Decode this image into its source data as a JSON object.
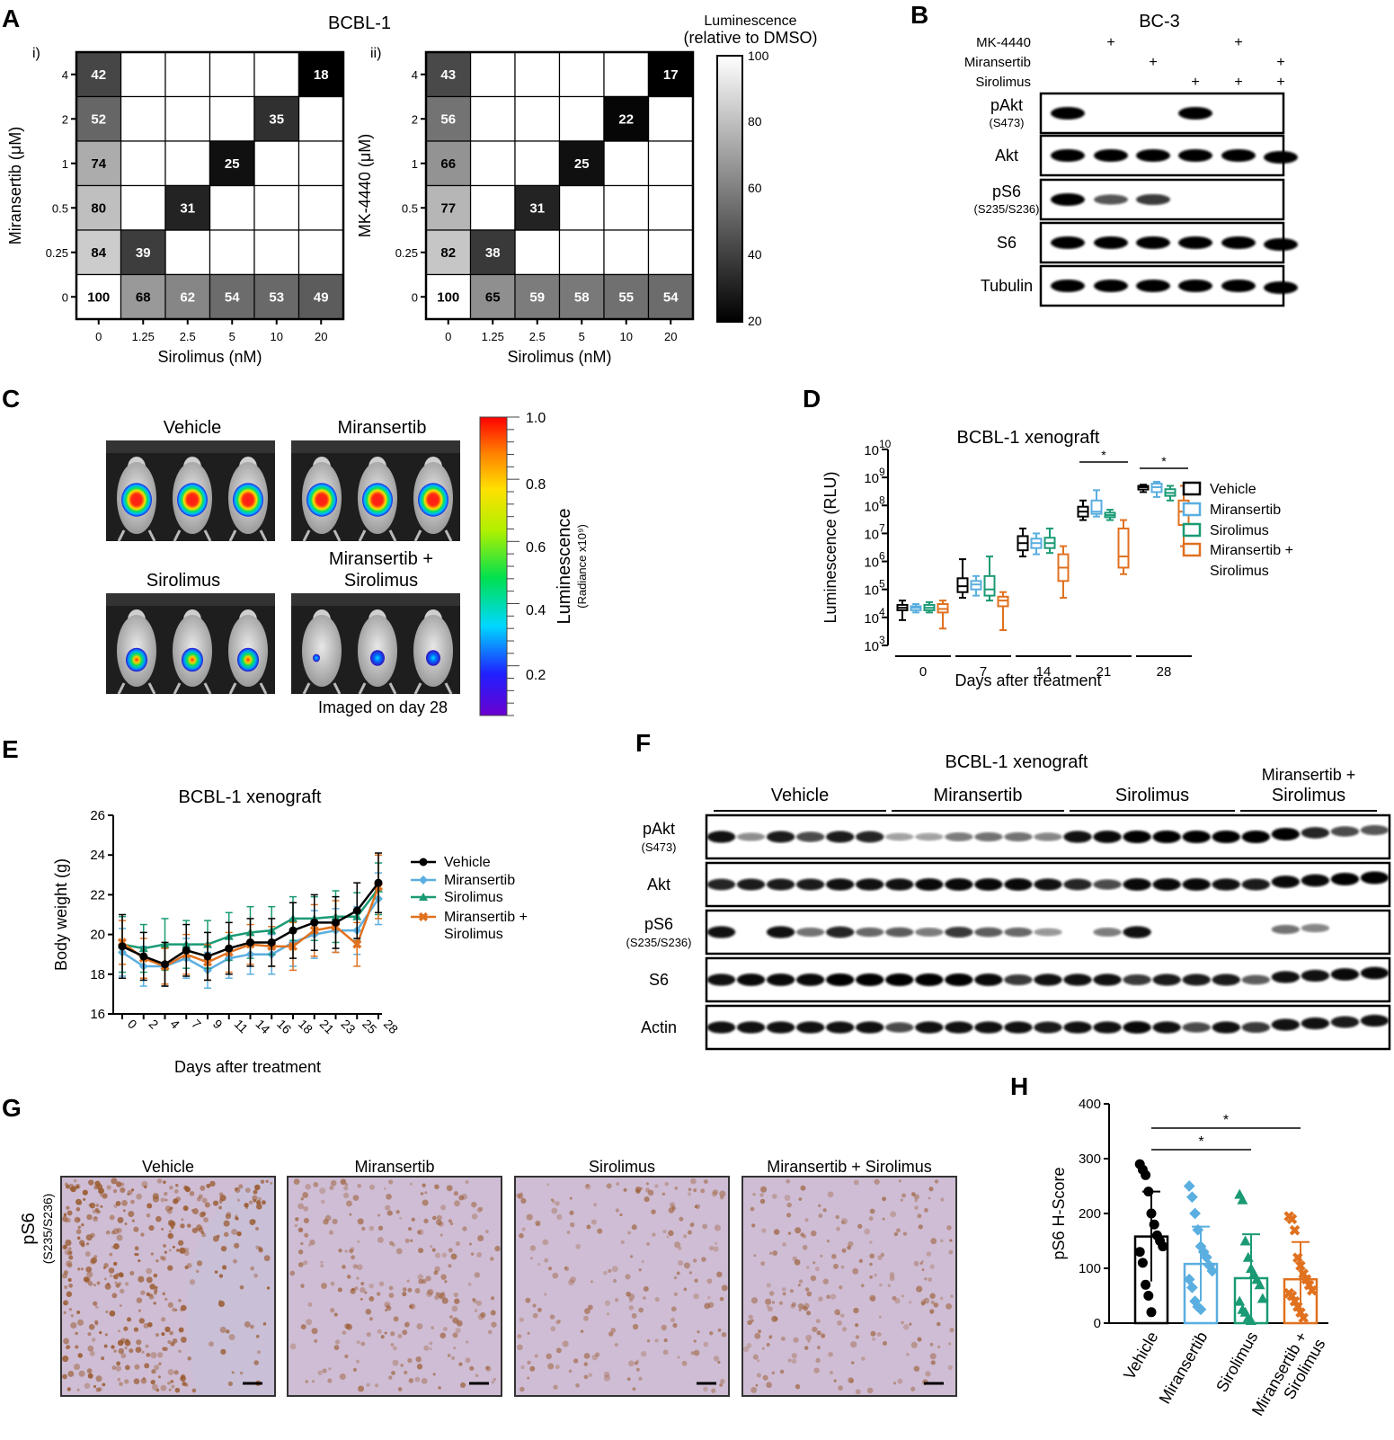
{
  "panels": {
    "A": "A",
    "B": "B",
    "C": "C",
    "D": "D",
    "E": "E",
    "F": "F",
    "G": "G",
    "H": "H"
  },
  "panel_a": {
    "title": "BCBL-1",
    "sub_i": "i)",
    "sub_ii": "ii)",
    "colorbar_title_1": "Luminescence",
    "colorbar_title_2": "(relative to DMSO)",
    "colorbar_ticks": [
      "100",
      "80",
      "60",
      "40",
      "20"
    ]
  },
  "panel_b": {
    "title": "BC-3",
    "treatments": [
      {
        "name": "MK-4440",
        "marks": [
          "",
          "+",
          "",
          "",
          "+",
          ""
        ]
      },
      {
        "name": "Miransertib",
        "marks": [
          "",
          "",
          "+",
          "",
          "",
          "+"
        ]
      },
      {
        "name": "Sirolimus",
        "marks": [
          "",
          "",
          "",
          "+",
          "+",
          "+"
        ]
      }
    ],
    "blots": [
      {
        "name": "pAkt",
        "sub": "(S473)",
        "bands": [
          1,
          0,
          0,
          1,
          0,
          0
        ]
      },
      {
        "name": "Akt",
        "sub": "",
        "bands": [
          1,
          1,
          1,
          1,
          1,
          1
        ]
      },
      {
        "name": "pS6",
        "sub": "(S235/S236)",
        "bands": [
          1,
          0.55,
          0.7,
          0,
          0,
          0
        ]
      },
      {
        "name": "S6",
        "sub": "",
        "bands": [
          1,
          1,
          1,
          1,
          1,
          1
        ]
      },
      {
        "name": "Tubulin",
        "sub": "",
        "bands": [
          1,
          1,
          1,
          1,
          1,
          1
        ]
      }
    ]
  },
  "panel_c": {
    "groups": [
      "Vehicle",
      "Miransertib",
      "Sirolimus"
    ],
    "combo_line1": "Miransertib +",
    "combo_line2": "Sirolimus",
    "footer": "Imaged on day 28",
    "colorbar_label": "Luminescence",
    "colorbar_sub": "(Radiance x10⁹)",
    "colorbar_ticks": [
      "1.0",
      "0.8",
      "0.6",
      "0.4",
      "0.2"
    ]
  },
  "panel_e": {
    "legend": [
      "Vehicle",
      "Miransertib",
      "Sirolimus",
      "Miransertib +",
      "Sirolimus"
    ]
  },
  "panel_f": {
    "title": "BCBL-1 xenograft",
    "groups": [
      "Vehicle",
      "Miransertib",
      "Sirolimus"
    ],
    "combo_line1": "Miransertib +",
    "combo_line2": "Sirolimus",
    "blots": [
      {
        "name": "pAkt",
        "sub": "(S473)",
        "bands": [
          0.9,
          0.25,
          0.85,
          0.6,
          0.85,
          0.8,
          0.15,
          0.15,
          0.35,
          0.4,
          0.4,
          0.3,
          0.9,
          0.95,
          1,
          1,
          1,
          1,
          1,
          1,
          0.8,
          0.6,
          0.55
        ]
      },
      {
        "name": "Akt",
        "sub": "",
        "bands": [
          0.8,
          0.85,
          0.85,
          0.85,
          0.9,
          0.9,
          0.9,
          0.95,
          0.95,
          0.95,
          0.95,
          0.9,
          0.8,
          0.6,
          0.95,
          0.95,
          0.95,
          0.9,
          0.85,
          0.95,
          0.95,
          1,
          1
        ]
      },
      {
        "name": "pS6",
        "sub": "(S235/S236)",
        "bands": [
          0.9,
          0,
          0.9,
          0.4,
          0.8,
          0.45,
          0.5,
          0.35,
          0.7,
          0.5,
          0.45,
          0.2,
          0,
          0.35,
          0.9,
          0,
          0,
          0,
          0,
          0.4,
          0.3,
          0,
          0
        ]
      },
      {
        "name": "S6",
        "sub": "",
        "bands": [
          0.9,
          0.95,
          0.95,
          0.95,
          1,
          1,
          1,
          1,
          1,
          0.95,
          0.7,
          0.9,
          0.9,
          0.9,
          0.7,
          0.85,
          0.85,
          0.85,
          0.5,
          0.9,
          0.9,
          0.95,
          0.95
        ]
      },
      {
        "name": "Actin",
        "sub": "",
        "bands": [
          0.9,
          0.9,
          0.9,
          0.9,
          0.9,
          0.9,
          0.6,
          0.9,
          0.9,
          0.9,
          0.9,
          0.85,
          0.9,
          0.9,
          0.95,
          0.9,
          0.6,
          0.9,
          0.7,
          0.9,
          0.9,
          0.85,
          0.9
        ]
      }
    ]
  },
  "panel_g": {
    "groups": [
      "Vehicle",
      "Miransertib",
      "Sirolimus",
      "Miransertib + Sirolimus"
    ],
    "ylabel": "pS6",
    "ysub": "(S235/S236)",
    "stain_density": [
      0.85,
      0.35,
      0.25,
      0.3
    ]
  },
  "colors": {
    "vehicle": "#000000",
    "miransertib": "#5aaee0",
    "sirolimus": "#1a9a74",
    "combo": "#e0711f"
  },
  "chart_data": [
    {
      "id": "A-i",
      "type": "heatmap",
      "xlabel": "Sirolimus (nM)",
      "ylabel": "Miransertib (μM)",
      "x": [
        "0",
        "1.25",
        "2.5",
        "5",
        "10",
        "20"
      ],
      "y": [
        "4",
        "2",
        "1",
        "0.5",
        "0.25",
        "0"
      ],
      "cells": [
        {
          "x": "0",
          "y": "4",
          "value": 42
        },
        {
          "x": "0",
          "y": "2",
          "value": 52
        },
        {
          "x": "0",
          "y": "1",
          "value": 74
        },
        {
          "x": "0",
          "y": "0.5",
          "value": 80
        },
        {
          "x": "0",
          "y": "0.25",
          "value": 84
        },
        {
          "x": "0",
          "y": "0",
          "value": 100
        },
        {
          "x": "1.25",
          "y": "0.25",
          "value": 39
        },
        {
          "x": "2.5",
          "y": "0.5",
          "value": 31
        },
        {
          "x": "5",
          "y": "1",
          "value": 25
        },
        {
          "x": "10",
          "y": "2",
          "value": 35
        },
        {
          "x": "20",
          "y": "4",
          "value": 18
        },
        {
          "x": "1.25",
          "y": "0",
          "value": 68
        },
        {
          "x": "2.5",
          "y": "0",
          "value": 62
        },
        {
          "x": "5",
          "y": "0",
          "value": 54
        },
        {
          "x": "10",
          "y": "0",
          "value": 53
        },
        {
          "x": "20",
          "y": "0",
          "value": 49
        }
      ],
      "color_range": [
        20,
        100
      ]
    },
    {
      "id": "A-ii",
      "type": "heatmap",
      "xlabel": "Sirolimus (nM)",
      "ylabel": "MK-4440 (μM)",
      "x": [
        "0",
        "1.25",
        "2.5",
        "5",
        "10",
        "20"
      ],
      "y": [
        "4",
        "2",
        "1",
        "0.5",
        "0.25",
        "0"
      ],
      "cells": [
        {
          "x": "0",
          "y": "4",
          "value": 43
        },
        {
          "x": "0",
          "y": "2",
          "value": 56
        },
        {
          "x": "0",
          "y": "1",
          "value": 66
        },
        {
          "x": "0",
          "y": "0.5",
          "value": 77
        },
        {
          "x": "0",
          "y": "0.25",
          "value": 82
        },
        {
          "x": "0",
          "y": "0",
          "value": 100
        },
        {
          "x": "1.25",
          "y": "0.25",
          "value": 38
        },
        {
          "x": "2.5",
          "y": "0.5",
          "value": 31
        },
        {
          "x": "5",
          "y": "1",
          "value": 25
        },
        {
          "x": "10",
          "y": "2",
          "value": 22
        },
        {
          "x": "20",
          "y": "4",
          "value": 17
        },
        {
          "x": "1.25",
          "y": "0",
          "value": 65
        },
        {
          "x": "2.5",
          "y": "0",
          "value": 59
        },
        {
          "x": "5",
          "y": "0",
          "value": 58
        },
        {
          "x": "10",
          "y": "0",
          "value": 55
        },
        {
          "x": "20",
          "y": "0",
          "value": 54
        }
      ],
      "color_range": [
        20,
        100
      ]
    },
    {
      "id": "D",
      "type": "box",
      "title": "BCBL-1 xenograft",
      "xlabel": "Days after treatment",
      "ylabel": "Luminescence (RLU)",
      "yscale": "log",
      "ylim": [
        1000,
        10000000000
      ],
      "categories": [
        "0",
        "7",
        "14",
        "21",
        "28"
      ],
      "series": [
        {
          "name": "Vehicle",
          "boxes": [
            [
              8000,
              18000,
              22000,
              28000,
              40000
            ],
            [
              50000,
              80000,
              130000,
              250000,
              1200000
            ],
            [
              1500000,
              2500000,
              4500000,
              8000000,
              15000000
            ],
            [
              30000000,
              40000000,
              60000000,
              90000000,
              150000000
            ],
            [
              300000000,
              370000000,
              450000000,
              500000000,
              550000000
            ]
          ]
        },
        {
          "name": "Miransertib",
          "boxes": [
            [
              15000,
              18000,
              22000,
              25000,
              30000
            ],
            [
              60000,
              100000,
              150000,
              200000,
              300000
            ],
            [
              1800000,
              3000000,
              4500000,
              6500000,
              10000000
            ],
            [
              40000000,
              50000000,
              60000000,
              150000000,
              350000000
            ],
            [
              200000000,
              300000000,
              450000000,
              600000000,
              700000000
            ]
          ]
        },
        {
          "name": "Sirolimus",
          "boxes": [
            [
              15000,
              18000,
              22000,
              28000,
              35000
            ],
            [
              40000,
              60000,
              100000,
              300000,
              1500000
            ],
            [
              2000000,
              3000000,
              4500000,
              7000000,
              15000000
            ],
            [
              30000000,
              38000000,
              45000000,
              55000000,
              70000000
            ],
            [
              150000000,
              220000000,
              280000000,
              380000000,
              500000000
            ]
          ]
        },
        {
          "name": "Miransertib + Sirolimus",
          "boxes": [
            [
              4000,
              15000,
              20000,
              30000,
              40000
            ],
            [
              3500,
              25000,
              40000,
              55000,
              80000
            ],
            [
              50000,
              200000,
              600000,
              1800000,
              3500000
            ],
            [
              350000,
              600000,
              1500000,
              15000000,
              30000000
            ],
            [
              3500000,
              20000000,
              60000000,
              150000000,
              500000000
            ]
          ]
        }
      ],
      "significance": [
        {
          "category": "21",
          "label": "*"
        },
        {
          "category": "28",
          "label": "*"
        }
      ],
      "legend_position": "right"
    },
    {
      "id": "E",
      "type": "line",
      "title": "BCBL-1 xenograft",
      "xlabel": "Days after treatment",
      "ylabel": "Body weight (g)",
      "ylim": [
        16,
        26
      ],
      "x": [
        0,
        2,
        4,
        7,
        9,
        11,
        14,
        16,
        18,
        21,
        23,
        25,
        28
      ],
      "series": [
        {
          "name": "Vehicle",
          "values": [
            19.4,
            18.9,
            18.5,
            19.2,
            18.9,
            19.3,
            19.6,
            19.6,
            20.2,
            20.6,
            20.6,
            21.2,
            22.6
          ],
          "errors": [
            1.6,
            1.2,
            1.1,
            1.3,
            1.2,
            1.3,
            1.2,
            1.2,
            1.4,
            1.4,
            1.3,
            1.4,
            1.5
          ]
        },
        {
          "name": "Miransertib",
          "values": [
            19.1,
            18.4,
            18.4,
            18.8,
            18.2,
            18.8,
            19.0,
            19.0,
            19.6,
            20.0,
            20.2,
            20.2,
            21.8
          ],
          "errors": [
            1.2,
            1.0,
            1.0,
            1.0,
            0.9,
            1.0,
            1.0,
            1.0,
            1.2,
            1.2,
            1.1,
            1.2,
            1.3
          ]
        },
        {
          "name": "Sirolimus",
          "values": [
            19.5,
            19.3,
            19.5,
            19.5,
            19.5,
            19.9,
            20.1,
            20.2,
            20.8,
            20.8,
            20.9,
            20.9,
            22.3
          ],
          "errors": [
            1.4,
            1.2,
            1.3,
            1.2,
            1.2,
            1.2,
            1.3,
            1.2,
            1.1,
            1.1,
            1.3,
            1.2,
            1.3
          ]
        },
        {
          "name": "Miransertib + Sirolimus",
          "values": [
            19.6,
            18.8,
            18.4,
            19.0,
            18.6,
            19.1,
            19.5,
            19.4,
            19.4,
            20.2,
            20.4,
            19.5,
            22.4
          ],
          "errors": [
            1.1,
            1.0,
            0.9,
            1.0,
            0.9,
            1.0,
            1.0,
            1.0,
            1.2,
            1.3,
            1.3,
            1.1,
            1.6
          ]
        }
      ],
      "legend_position": "right"
    },
    {
      "id": "H",
      "type": "bar",
      "ylabel": "pS6 H-Score",
      "ylim": [
        0,
        400
      ],
      "categories": [
        "Vehicle",
        "Miransertib",
        "Sirolimus",
        "Miransertib + Sirolimus"
      ],
      "values": [
        158,
        108,
        82,
        80
      ],
      "errors": [
        82,
        68,
        80,
        68
      ],
      "points": [
        [
          290,
          280,
          270,
          240,
          200,
          180,
          160,
          150,
          140,
          130,
          110,
          70,
          50,
          20
        ],
        [
          250,
          230,
          200,
          170,
          140,
          130,
          120,
          105,
          95,
          80,
          65,
          40,
          30,
          25
        ],
        [
          235,
          225,
          150,
          120,
          100,
          90,
          80,
          70,
          45,
          40,
          25,
          20,
          10,
          5
        ],
        [
          195,
          190,
          170,
          120,
          105,
          90,
          80,
          70,
          60,
          55,
          50,
          40,
          30,
          20,
          10
        ]
      ],
      "significance": [
        {
          "from": "Vehicle",
          "to": "Sirolimus",
          "label": "*"
        },
        {
          "from": "Vehicle",
          "to": "Miransertib + Sirolimus",
          "label": "*"
        }
      ]
    }
  ]
}
